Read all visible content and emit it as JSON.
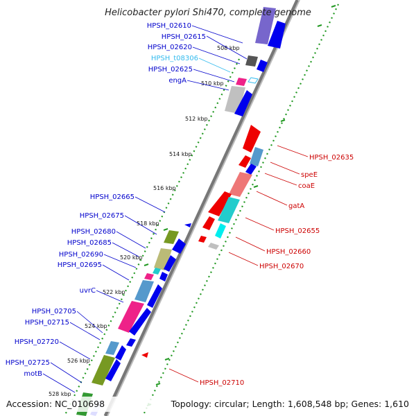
{
  "title": "Helicobacter pylori Shi470, complete genome",
  "footer": {
    "accession": "Accession: NC_010698",
    "summary": "Topology: circular; Length: 1,608,548 bp; Genes: 1,610"
  },
  "colors": {
    "forward_label": "#0000cc",
    "reverse_label": "#cc0000",
    "trna_label": "#33bbee",
    "backbone": "#888888",
    "gc_dots": "#229922"
  },
  "scale_labels": [
    "508 kbp",
    "510 kbp",
    "512 kbp",
    "514 kbp",
    "516 kbp",
    "518 kbp",
    "520 kbp",
    "522 kbp",
    "524 kbp",
    "526 kbp",
    "528 kbp"
  ],
  "left_genes": [
    "HPSH_02610",
    "HPSH_02615",
    "HPSH_02620",
    "HPSH_t08306",
    "HPSH_02625",
    "engA",
    "HPSH_02665",
    "HPSH_02675",
    "HPSH_02680",
    "HPSH_02685",
    "HPSH_02690",
    "HPSH_02695",
    "uvrC",
    "HPSH_02705",
    "HPSH_02715",
    "HPSH_02720",
    "HPSH_02725",
    "motB"
  ],
  "right_genes": [
    "HPSH_02635",
    "speE",
    "coaE",
    "gatA",
    "HPSH_02655",
    "HPSH_02660",
    "HPSH_02670",
    "HPSH_02710"
  ]
}
